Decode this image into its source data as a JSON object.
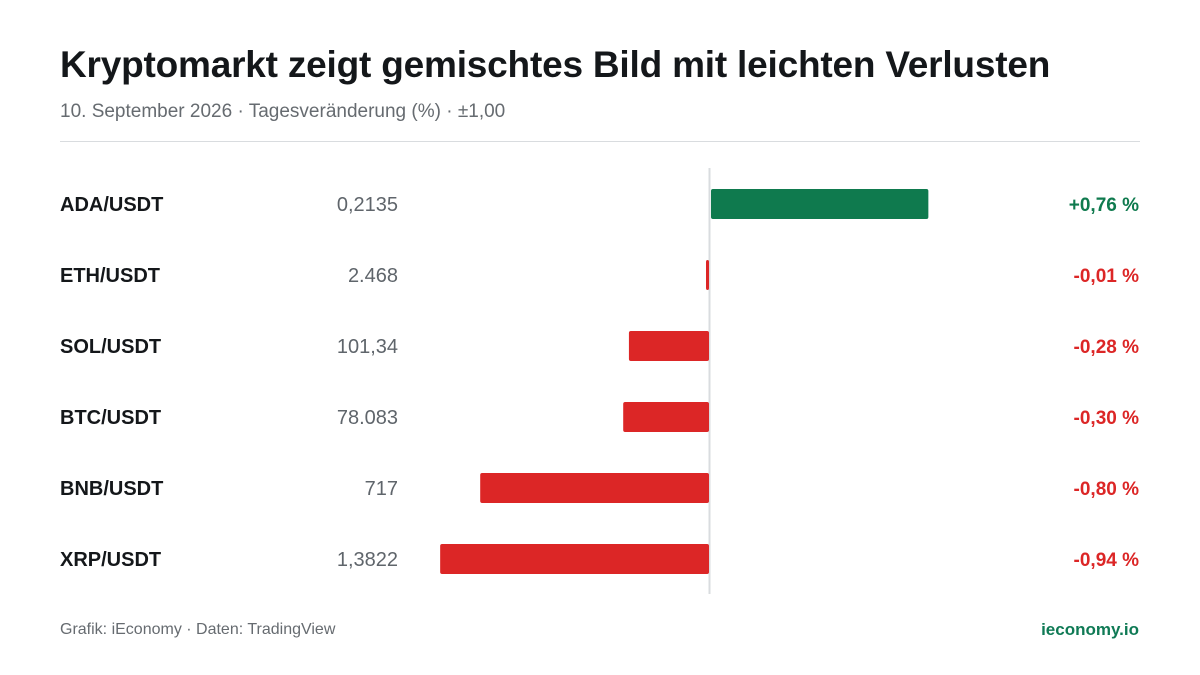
{
  "header": {
    "title": "Kryptomarkt zeigt gemischtes Bild mit leichten Verlusten",
    "subtitle": "10. September 2026 · Tagesveränderung (%) · ±1,00"
  },
  "footer": {
    "credit": "Grafik: iEconomy · Daten: TradingView",
    "brand": "ieconomy.io"
  },
  "colors": {
    "positive": "#0f7a4e",
    "negative": "#dc2626",
    "label": "#14171a",
    "price": "#5f656b",
    "axis": "#d9dcdf"
  },
  "chart_data": {
    "type": "bar",
    "orientation": "horizontal",
    "xlim": [
      -1.0,
      1.0
    ],
    "unit": "%",
    "categories": [
      "ADA/USDT",
      "ETH/USDT",
      "SOL/USDT",
      "BTC/USDT",
      "BNB/USDT",
      "XRP/USDT"
    ],
    "prices": [
      "0,2135",
      "2.468",
      "101,34",
      "78.083",
      "717",
      "1,3822"
    ],
    "values": [
      0.76,
      -0.01,
      -0.28,
      -0.3,
      -0.8,
      -0.94
    ],
    "value_labels": [
      "+0,76 %",
      "-0,01 %",
      "-0,28 %",
      "-0,30 %",
      "-0,80 %",
      "-0,94 %"
    ]
  }
}
